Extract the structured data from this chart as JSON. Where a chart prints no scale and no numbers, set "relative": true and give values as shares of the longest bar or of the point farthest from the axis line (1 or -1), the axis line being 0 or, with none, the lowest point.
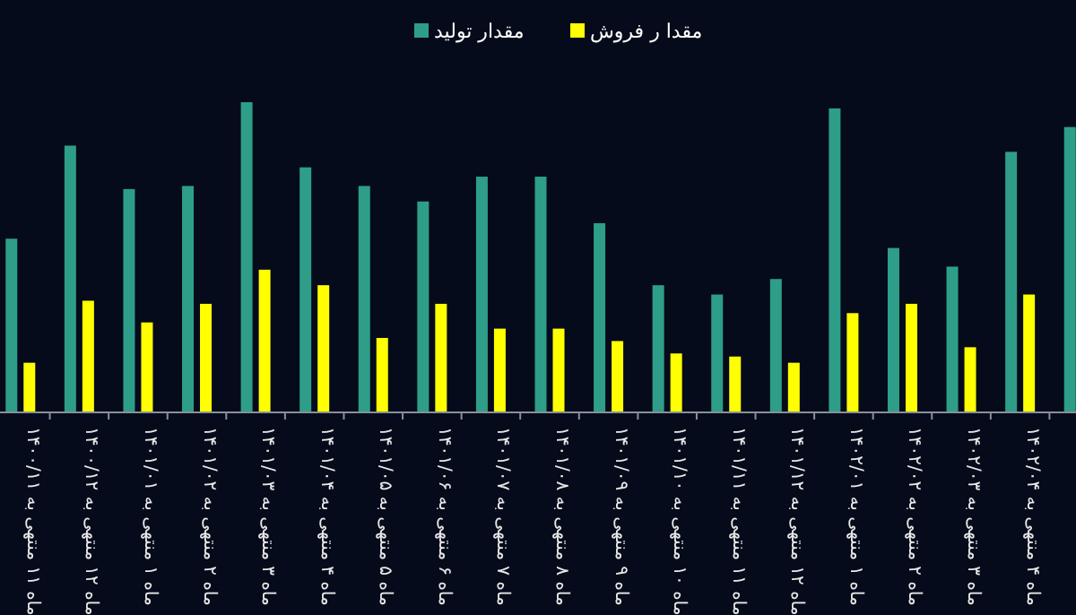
{
  "chart_data": {
    "type": "bar",
    "relative": true,
    "legend": "top",
    "categories": [
      "ماه ۱۱ منتهی به ۱۴۰۰/۱۱",
      "ماه ۱۲ منتهی به ۱۴۰۰/۱۲",
      "ماه ۱ منتهی به ۱۴۰۱/۰۱",
      "ماه ۲ منتهی به ۱۴۰۱/۰۲",
      "ماه ۳ منتهی به ۱۴۰۱/۰۳",
      "ماه ۴ منتهی به ۱۴۰۱/۰۴",
      "ماه ۵ منتهی به ۱۴۰۱/۰۵",
      "ماه ۶ منتهی به ۱۴۰۱/۰۶",
      "ماه ۷ منتهی به ۱۴۰۱/۰۷",
      "ماه ۸ منتهی به ۱۴۰۱/۰۸",
      "ماه ۹ منتهی به ۱۴۰۱/۰۹",
      "ماه ۱۰ منتهی به ۱۴۰۱/۱۰",
      "ماه ۱۱ منتهی به ۱۴۰۱/۱۱",
      "ماه ۱۲ منتهی به ۱۴۰۱/۱۲",
      "ماه ۱ منتهی به ۱۴۰۲/۰۱",
      "ماه ۲ منتهی به ۱۴۰۲/۰۲",
      "ماه ۳ منتهی به ۱۴۰۲/۰۳",
      "ماه ۴ منتهی به ۱۴۰۲/۰۴",
      null
    ],
    "series": [
      {
        "name": "مقدار تولید",
        "color": "#2e9e88",
        "values": [
          0.56,
          0.86,
          0.72,
          0.73,
          1,
          0.79,
          0.73,
          0.68,
          0.76,
          0.76,
          0.61,
          0.41,
          0.38,
          0.43,
          0.98,
          0.53,
          0.47,
          0.84,
          0.92
        ]
      },
      {
        "name": "مقدا ر فروش",
        "color": "#ffff00",
        "values": [
          0.16,
          0.36,
          0.29,
          0.35,
          0.46,
          0.41,
          0.24,
          0.35,
          0.27,
          0.27,
          0.23,
          0.19,
          0.18,
          0.16,
          0.32,
          0.35,
          0.21,
          0.38,
          null
        ]
      }
    ]
  }
}
